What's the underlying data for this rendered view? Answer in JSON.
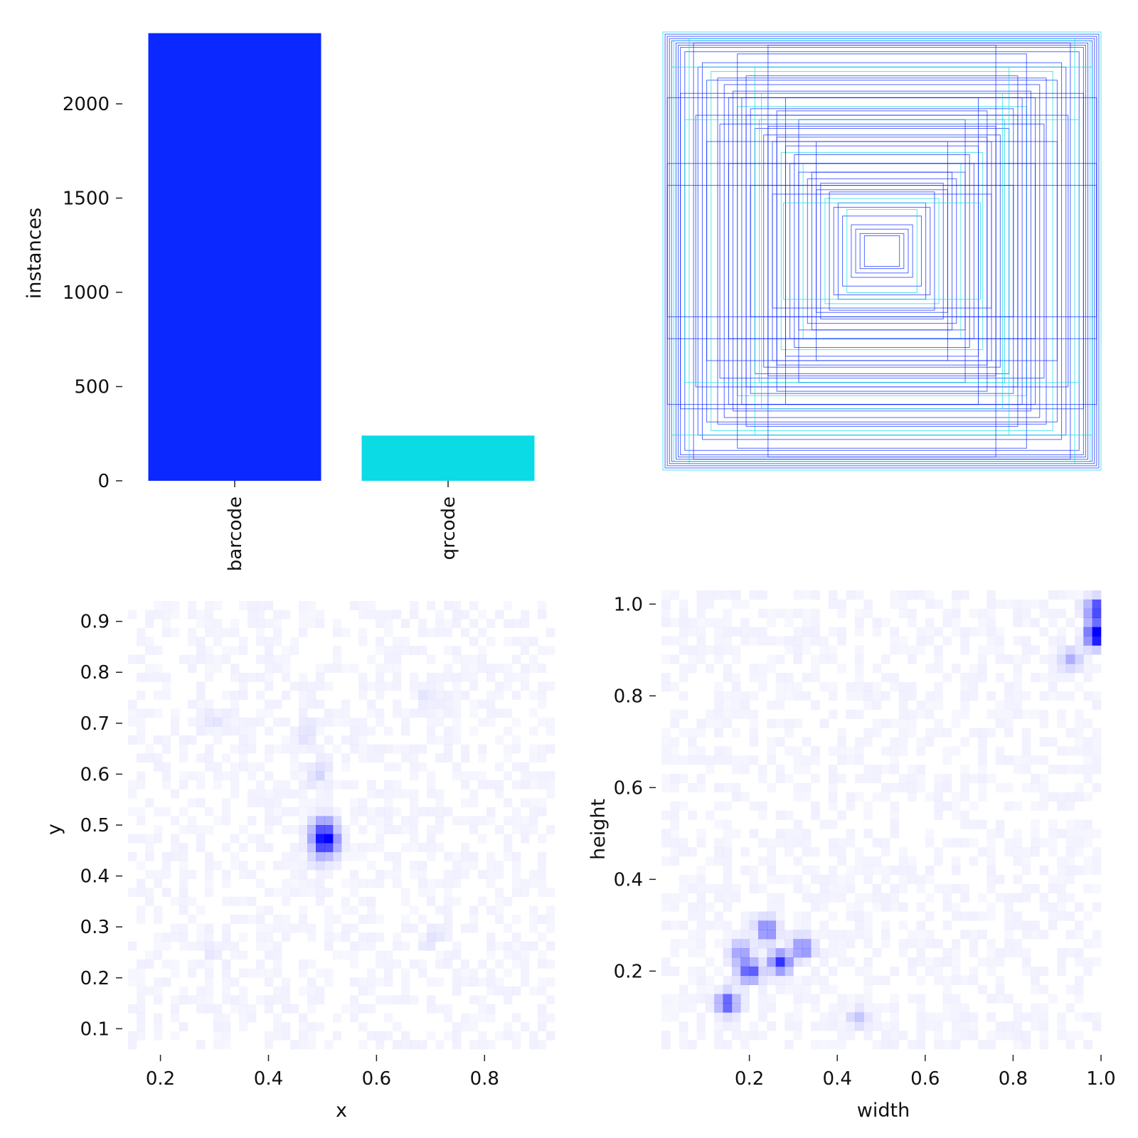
{
  "chart_data": [
    {
      "type": "bar",
      "categories": [
        "barcode",
        "qrcode"
      ],
      "values": [
        2375,
        240
      ],
      "colors": [
        "#0a28ff",
        "#0bdbe5"
      ],
      "ylabel": "instances",
      "xlabel": "",
      "ylim": [
        0,
        2400
      ],
      "yticks": [
        0,
        500,
        1000,
        1500,
        2000
      ],
      "grid": false
    },
    {
      "type": "rectangle-overlay",
      "description_colors": [
        "#0a28ff",
        "#0bdbe5"
      ],
      "xlim": [
        0,
        1
      ],
      "ylim": [
        0,
        1
      ],
      "boxes": [
        [
          1.0,
          1.0
        ],
        [
          0.99,
          0.99
        ],
        [
          0.98,
          0.98
        ],
        [
          0.97,
          0.97
        ],
        [
          0.96,
          0.96
        ],
        [
          0.95,
          0.96
        ],
        [
          0.94,
          0.95
        ],
        [
          0.93,
          0.94
        ],
        [
          0.92,
          0.93
        ],
        [
          0.9,
          0.91
        ],
        [
          0.88,
          0.97
        ],
        [
          0.86,
          0.95
        ],
        [
          0.84,
          0.84
        ],
        [
          0.82,
          0.86
        ],
        [
          0.8,
          0.78
        ],
        [
          0.78,
          0.82
        ],
        [
          0.75,
          0.79
        ],
        [
          0.72,
          0.76
        ],
        [
          0.7,
          0.7
        ],
        [
          0.68,
          0.73
        ],
        [
          0.66,
          0.66
        ],
        [
          0.64,
          0.7
        ],
        [
          0.62,
          0.62
        ],
        [
          0.6,
          0.65
        ],
        [
          0.58,
          0.56
        ],
        [
          0.56,
          0.6
        ],
        [
          0.54,
          0.53
        ],
        [
          0.52,
          0.57
        ],
        [
          0.5,
          0.5
        ],
        [
          0.48,
          0.52
        ],
        [
          0.46,
          0.45
        ],
        [
          0.44,
          0.48
        ],
        [
          0.42,
          0.4
        ],
        [
          0.4,
          0.44
        ],
        [
          0.38,
          0.36
        ],
        [
          0.36,
          0.4
        ],
        [
          0.34,
          0.33
        ],
        [
          0.32,
          0.36
        ],
        [
          0.3,
          0.28
        ],
        [
          0.28,
          0.31
        ],
        [
          0.26,
          0.24
        ],
        [
          0.24,
          0.27
        ],
        [
          0.22,
          0.2
        ],
        [
          0.2,
          0.22
        ],
        [
          0.18,
          0.16
        ],
        [
          0.16,
          0.19
        ],
        [
          0.14,
          0.12
        ],
        [
          0.12,
          0.1
        ],
        [
          0.1,
          0.08
        ],
        [
          0.08,
          0.07
        ],
        [
          0.96,
          0.84
        ],
        [
          0.92,
          0.72
        ],
        [
          0.85,
          0.62
        ],
        [
          0.74,
          0.58
        ],
        [
          0.66,
          0.9
        ],
        [
          0.58,
          0.84
        ],
        [
          0.52,
          0.94
        ],
        [
          0.44,
          0.7
        ],
        [
          0.38,
          0.6
        ],
        [
          0.3,
          0.5
        ],
        [
          0.9,
          0.6
        ],
        [
          0.8,
          0.5
        ],
        [
          0.7,
          0.4
        ],
        [
          0.6,
          0.3
        ],
        [
          0.5,
          0.26
        ],
        [
          0.45,
          0.22
        ],
        [
          0.98,
          0.7
        ],
        [
          0.98,
          0.4
        ],
        [
          0.98,
          0.3
        ],
        [
          0.62,
          0.8
        ],
        [
          0.55,
          0.72
        ],
        [
          0.48,
          0.64
        ]
      ]
    },
    {
      "type": "heatmap",
      "xlabel": "x",
      "ylabel": "y",
      "xlim": [
        0.14,
        0.93
      ],
      "ylim": [
        0.06,
        0.94
      ],
      "xticks": [
        0.2,
        0.4,
        0.6,
        0.8
      ],
      "yticks": [
        0.1,
        0.2,
        0.3,
        0.4,
        0.5,
        0.6,
        0.7,
        0.8,
        0.9
      ],
      "color": "#0000ff",
      "bins": [
        50,
        50
      ],
      "hotspots": [
        {
          "x": 0.505,
          "y": 0.47,
          "weight": 1.0
        },
        {
          "x": 0.5,
          "y": 0.5,
          "weight": 0.35
        },
        {
          "x": 0.5,
          "y": 0.44,
          "weight": 0.15
        },
        {
          "x": 0.49,
          "y": 0.6,
          "weight": 0.12
        },
        {
          "x": 0.47,
          "y": 0.68,
          "weight": 0.1
        },
        {
          "x": 0.3,
          "y": 0.7,
          "weight": 0.06
        },
        {
          "x": 0.7,
          "y": 0.75,
          "weight": 0.07
        },
        {
          "x": 0.3,
          "y": 0.25,
          "weight": 0.06
        },
        {
          "x": 0.7,
          "y": 0.28,
          "weight": 0.06
        }
      ]
    },
    {
      "type": "heatmap",
      "xlabel": "width",
      "ylabel": "height",
      "xlim": [
        0.0,
        1.0
      ],
      "ylim": [
        0.03,
        1.03
      ],
      "xticks": [
        0.2,
        0.4,
        0.6,
        0.8,
        1.0
      ],
      "xtick_labels": [
        "0.2",
        "0.4",
        "0.6",
        "0.8",
        "1.0"
      ],
      "yticks": [
        0.2,
        0.4,
        0.6,
        0.8,
        1.0
      ],
      "ytick_labels": [
        "0.2",
        "0.4",
        "0.6",
        "0.8",
        "1.0"
      ],
      "color": "#0000ff",
      "bins": [
        50,
        50
      ],
      "hotspots": [
        {
          "x": 0.99,
          "y": 0.93,
          "weight": 1.0
        },
        {
          "x": 0.99,
          "y": 0.99,
          "weight": 0.75
        },
        {
          "x": 0.99,
          "y": 0.95,
          "weight": 0.35
        },
        {
          "x": 0.15,
          "y": 0.13,
          "weight": 0.7
        },
        {
          "x": 0.2,
          "y": 0.2,
          "weight": 0.7
        },
        {
          "x": 0.27,
          "y": 0.22,
          "weight": 0.75
        },
        {
          "x": 0.24,
          "y": 0.29,
          "weight": 0.55
        },
        {
          "x": 0.32,
          "y": 0.25,
          "weight": 0.5
        },
        {
          "x": 0.18,
          "y": 0.24,
          "weight": 0.4
        },
        {
          "x": 0.45,
          "y": 0.1,
          "weight": 0.2
        },
        {
          "x": 0.93,
          "y": 0.88,
          "weight": 0.3
        }
      ]
    }
  ]
}
